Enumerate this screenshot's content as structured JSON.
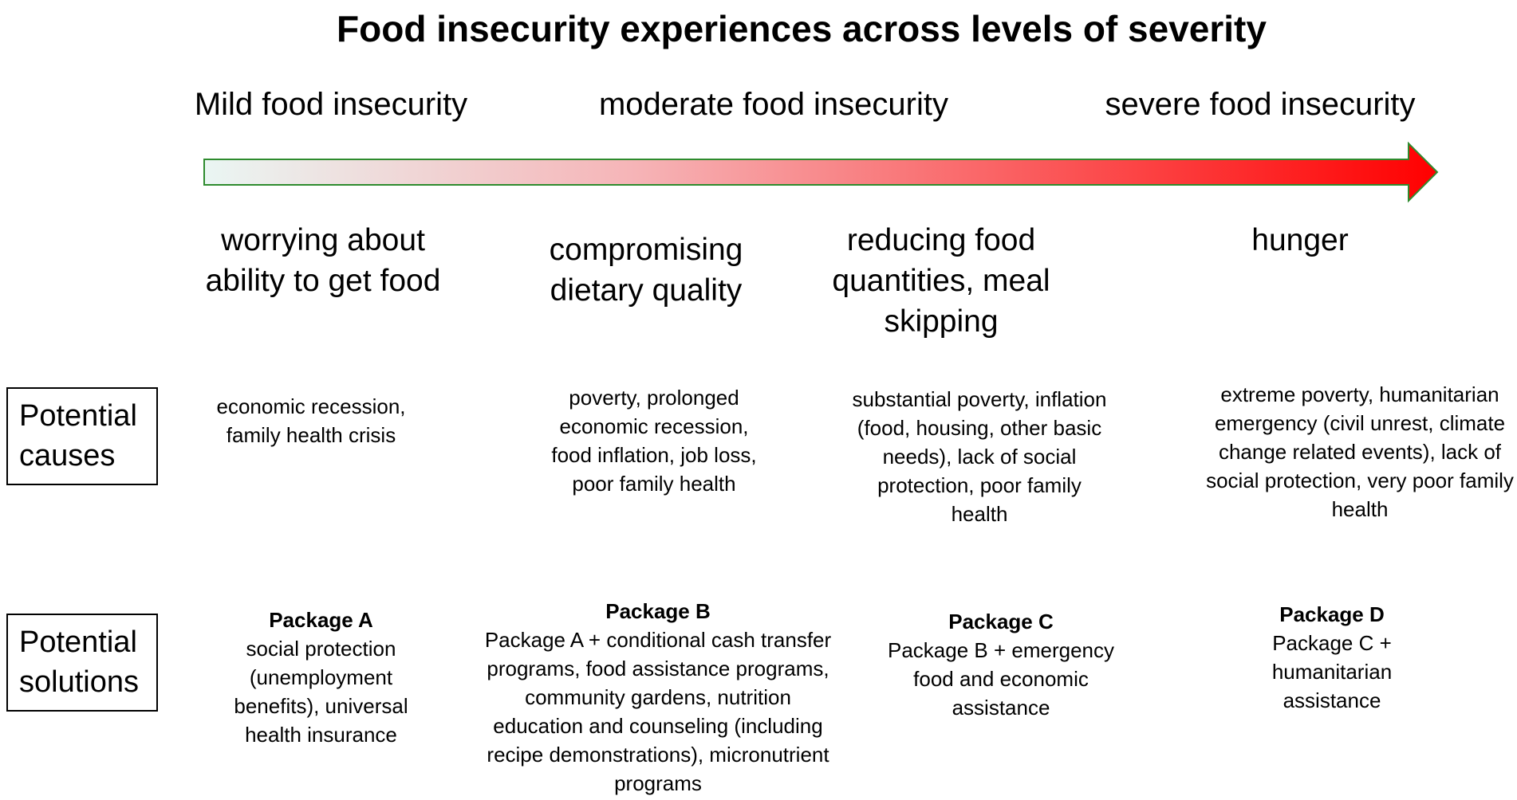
{
  "title": "Food insecurity experiences across levels of severity",
  "severity_levels": [
    "Mild food insecurity",
    "moderate food insecurity",
    "severe food insecurity"
  ],
  "arrow": {
    "gradient_start": "#eaf6f3",
    "gradient_mid": "#f6b4b7",
    "gradient_end": "#ff0000",
    "border": "#2e8b2e"
  },
  "stages": [
    "worrying about ability to get food",
    "compromising dietary quality",
    "reducing food quantities, meal skipping",
    "hunger"
  ],
  "row_labels": {
    "causes": "Potential causes",
    "solutions": "Potential solutions"
  },
  "causes": [
    "economic recession, family health crisis",
    "poverty, prolonged economic recession, food inflation, job loss, poor family health",
    "substantial poverty, inflation (food, housing, other basic needs), lack of social protection, poor family health",
    "extreme poverty, humanitarian emergency (civil unrest, climate change related events), lack of social protection, very poor family health"
  ],
  "solutions": [
    {
      "title": "Package A",
      "body": "social protection (unemployment benefits), universal health insurance"
    },
    {
      "title": "Package B",
      "body": "Package A + conditional cash transfer programs, food assistance programs, community gardens, nutrition education and counseling (including recipe demonstrations), micronutrient programs"
    },
    {
      "title": "Package C",
      "body": "Package B + emergency food and economic assistance"
    },
    {
      "title": "Package D",
      "body": "Package C + humanitarian assistance"
    }
  ]
}
